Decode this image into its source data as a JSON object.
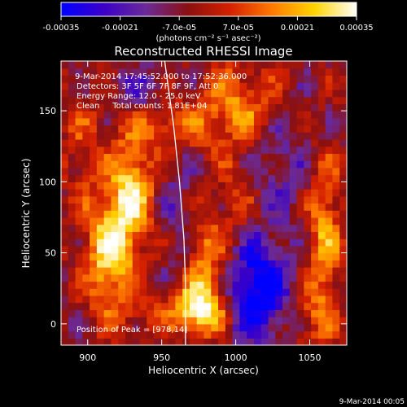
{
  "chart_data": {
    "type": "heatmap",
    "title": "Reconstructed RHESSI Image",
    "xlabel": "Heliocentric X (arcsec)",
    "ylabel": "Heliocentric Y (arcsec)",
    "xlim": [
      882,
      1075
    ],
    "ylim": [
      -15,
      185
    ],
    "x_ticks": [
      "900",
      "950",
      "1000",
      "1050"
    ],
    "y_ticks": [
      "0",
      "50",
      "100",
      "150"
    ],
    "x_tick_values": [
      900,
      950,
      1000,
      1050
    ],
    "y_tick_values": [
      0,
      50,
      100,
      150
    ],
    "colorbar": {
      "range": [
        -0.00035,
        0.00035
      ],
      "tick_labels": [
        "-0.00035",
        "-0.00021",
        "-7.0e-05",
        "7.0e-05",
        "0.00021",
        "0.00035"
      ],
      "tick_values": [
        -0.00035,
        -0.00021,
        -7e-05,
        7e-05,
        0.00021,
        0.00035
      ],
      "unit_label": "(photons cm⁻² s⁻¹ asec⁻²)",
      "colormap": [
        "#0000ff",
        "#3a00c8",
        "#6a2a9a",
        "#8a1010",
        "#d42000",
        "#ff7a00",
        "#ffd400",
        "#ffffff"
      ]
    },
    "annotations": {
      "time_range": "9-Mar-2014 17:45:52.000 to 17:52:36.000",
      "detectors": "Detectors: 3F 5F 6F 7F 8F 9F, Att 0",
      "energy": "Energy Range: 12.0 - 25.0 keV",
      "clean": "Clean     Total counts: 1.81E+04",
      "peak": "Position of Peak = [978,14]"
    },
    "limb_curve": [
      [
        952,
        185
      ],
      [
        958,
        140
      ],
      [
        962,
        100
      ],
      [
        965,
        60
      ],
      [
        966,
        30
      ],
      [
        966,
        -15
      ]
    ],
    "sources": [
      {
        "x": 915,
        "y": 50,
        "sx": 12,
        "sy": 30,
        "a": 1.0
      },
      {
        "x": 930,
        "y": 95,
        "sx": 10,
        "sy": 25,
        "a": 0.9
      },
      {
        "x": 975,
        "y": 10,
        "sx": 12,
        "sy": 12,
        "a": 1.2
      },
      {
        "x": 980,
        "y": 45,
        "sx": 10,
        "sy": 20,
        "a": 0.6
      },
      {
        "x": 955,
        "y": 140,
        "sx": 20,
        "sy": 12,
        "a": 0.5
      },
      {
        "x": 1000,
        "y": 155,
        "sx": 18,
        "sy": 20,
        "a": 0.6
      },
      {
        "x": 1060,
        "y": 60,
        "sx": 8,
        "sy": 40,
        "a": 0.7
      },
      {
        "x": 1000,
        "y": 90,
        "sx": 10,
        "sy": 25,
        "a": 0.3
      },
      {
        "x": 895,
        "y": 130,
        "sx": 10,
        "sy": 30,
        "a": 0.3
      },
      {
        "x": 940,
        "y": 5,
        "sx": 10,
        "sy": 10,
        "a": 0.3
      },
      {
        "x": 1050,
        "y": 5,
        "sx": 10,
        "sy": 15,
        "a": 0.35
      }
    ],
    "negative_sources": [
      {
        "x": 1015,
        "y": 25,
        "sx": 14,
        "sy": 25,
        "a": 1.0
      },
      {
        "x": 935,
        "y": 165,
        "sx": 15,
        "sy": 10,
        "a": 0.35
      },
      {
        "x": 1030,
        "y": 110,
        "sx": 15,
        "sy": 25,
        "a": 0.3
      },
      {
        "x": 960,
        "y": 80,
        "sx": 8,
        "sy": 30,
        "a": 0.25
      }
    ]
  },
  "footer": {
    "date": "9-Mar-2014 00:05"
  }
}
